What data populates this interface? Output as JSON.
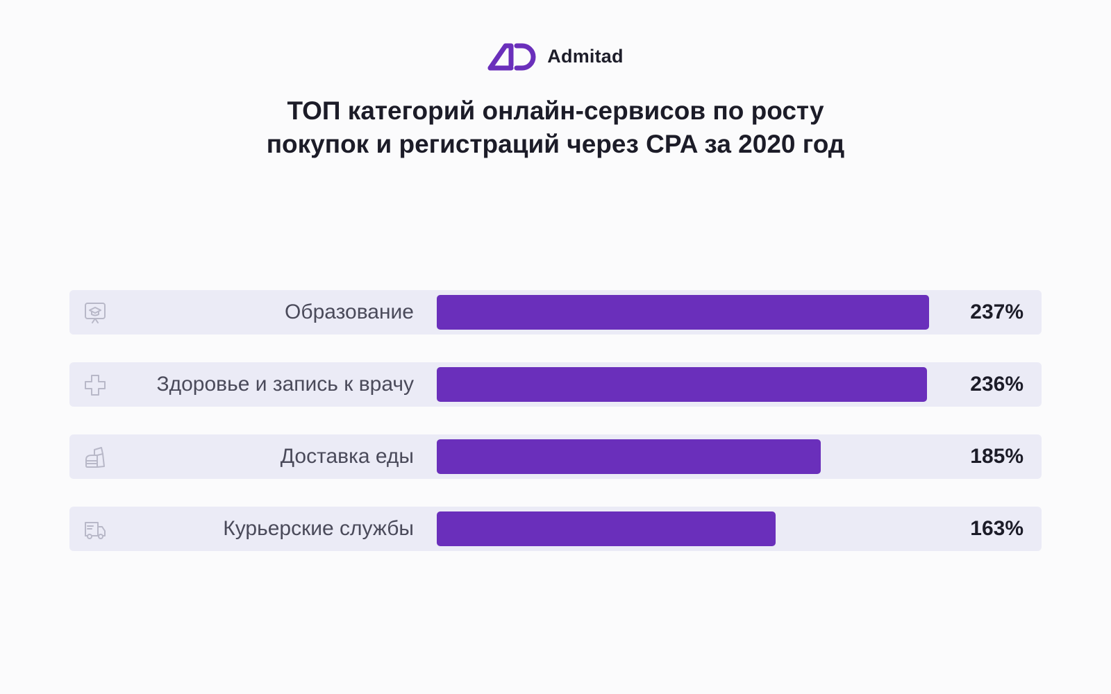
{
  "brand": {
    "name": "Admitad",
    "accent": "#6a2fbb"
  },
  "chart_data": {
    "type": "bar",
    "orientation": "horizontal",
    "title_lines": [
      "ТОП категорий онлайн-сервисов по росту",
      "покупок и регистраций через CPA за 2020 год"
    ],
    "categories": [
      "Образование",
      "Здоровье и запись к врачу",
      "Доставка еды",
      "Курьерские службы"
    ],
    "values": [
      237,
      236,
      185,
      163
    ],
    "value_labels": [
      "237%",
      "236%",
      "185%",
      "163%"
    ],
    "icons": [
      "education-icon",
      "health-cross-icon",
      "food-delivery-icon",
      "delivery-truck-icon"
    ],
    "unit": "%",
    "xlim": [
      0,
      242
    ],
    "bar_color": "#6a2fbb",
    "row_background": "#ebebf6",
    "grid": false,
    "legend": "none"
  }
}
